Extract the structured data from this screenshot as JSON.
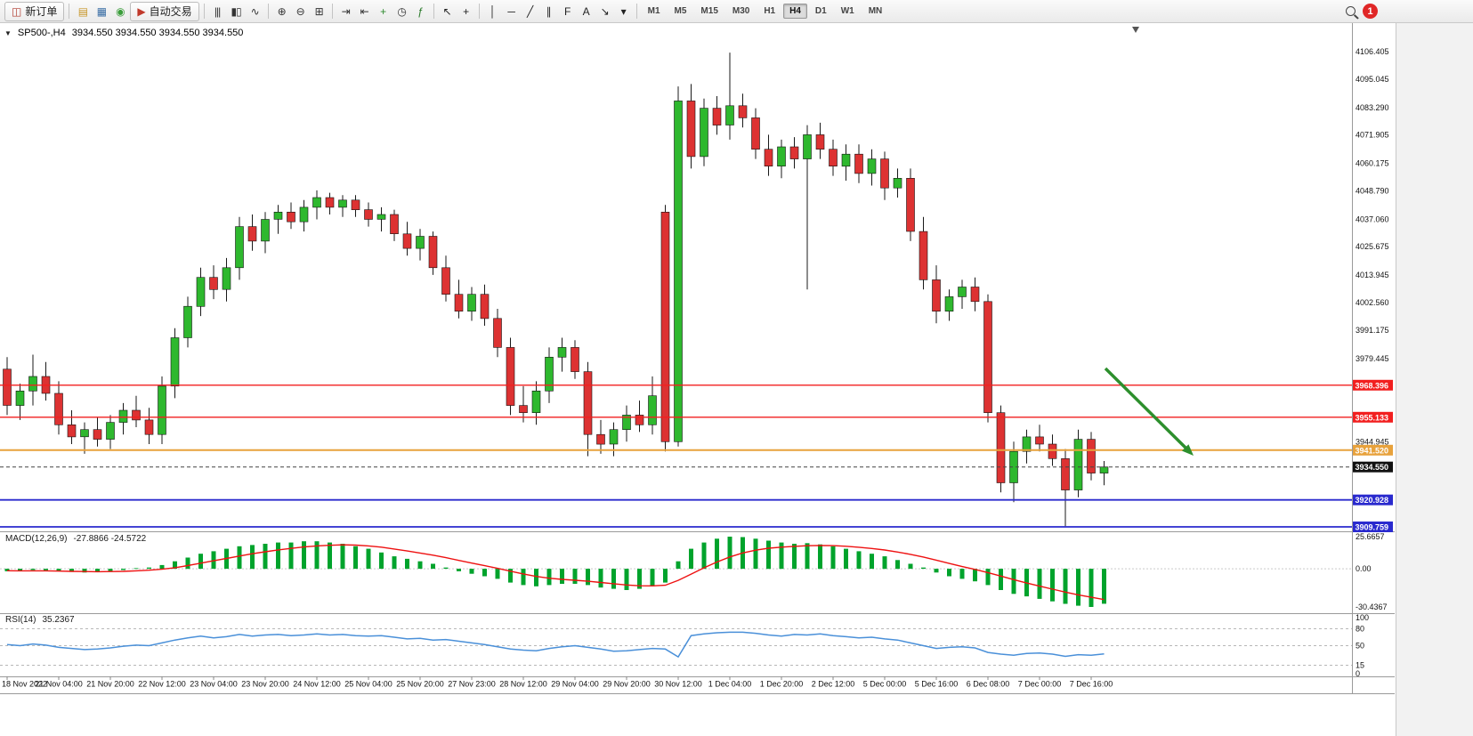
{
  "toolbar": {
    "notification_count": "1",
    "timeframes": [
      "M1",
      "M5",
      "M15",
      "M30",
      "H1",
      "H4",
      "D1",
      "W1",
      "MN"
    ],
    "active_timeframe": "H4",
    "items": [
      {
        "kind": "button",
        "name": "new-order-button",
        "glyph": "◫",
        "glyph_color": "#b03a2e",
        "label": "新订单"
      },
      {
        "kind": "sep"
      },
      {
        "kind": "icon",
        "name": "new-chart-icon",
        "glyph": "▤",
        "glyph_color": "#c8972b"
      },
      {
        "kind": "icon",
        "name": "profiles-icon",
        "glyph": "▦",
        "glyph_color": "#3a6ea5"
      },
      {
        "kind": "icon",
        "name": "market-watch-icon",
        "glyph": "◉",
        "glyph_color": "#3a9d3a"
      },
      {
        "kind": "button",
        "name": "autotrading-button",
        "glyph": "▶",
        "glyph_color": "#c0392b",
        "label": "自动交易"
      },
      {
        "kind": "sep"
      },
      {
        "kind": "icon",
        "name": "bar-chart-icon",
        "glyph": "|||",
        "glyph_color": "#333333"
      },
      {
        "kind": "icon",
        "name": "candlestick-chart-icon",
        "glyph": "▮▯",
        "glyph_color": "#333333"
      },
      {
        "kind": "icon",
        "name": "line-chart-icon",
        "glyph": "∿",
        "glyph_color": "#333333"
      },
      {
        "kind": "sep"
      },
      {
        "kind": "icon",
        "name": "zoom-in-icon",
        "glyph": "⊕",
        "glyph_color": "#333333"
      },
      {
        "kind": "icon",
        "name": "zoom-out-icon",
        "glyph": "⊖",
        "glyph_color": "#333333"
      },
      {
        "kind": "icon",
        "name": "tile-windows-icon",
        "glyph": "⊞",
        "glyph_color": "#333333"
      },
      {
        "kind": "sep"
      },
      {
        "kind": "icon",
        "name": "auto-scroll-icon",
        "glyph": "⇥",
        "glyph_color": "#333333"
      },
      {
        "kind": "icon",
        "name": "chart-shift-icon",
        "glyph": "⇤",
        "glyph_color": "#333333"
      },
      {
        "kind": "icon",
        "name": "new-window-icon",
        "glyph": "+",
        "glyph_color": "#2e8b2e"
      },
      {
        "kind": "icon",
        "name": "period-clock-icon",
        "glyph": "◷",
        "glyph_color": "#333333"
      },
      {
        "kind": "icon",
        "name": "indicators-icon",
        "glyph": "ƒ",
        "glyph_color": "#2a7a2a"
      },
      {
        "kind": "sep"
      },
      {
        "kind": "icon",
        "name": "cursor-icon",
        "glyph": "↖",
        "glyph_color": "#222222"
      },
      {
        "kind": "icon",
        "name": "crosshair-icon",
        "glyph": "+",
        "glyph_color": "#222222"
      },
      {
        "kind": "sep"
      },
      {
        "kind": "icon",
        "name": "vertical-line-icon",
        "glyph": "│",
        "glyph_color": "#222222"
      },
      {
        "kind": "icon",
        "name": "horizontal-line-icon",
        "glyph": "─",
        "glyph_color": "#222222"
      },
      {
        "kind": "icon",
        "name": "trendline-icon",
        "glyph": "╱",
        "glyph_color": "#222222"
      },
      {
        "kind": "icon",
        "name": "channel-icon",
        "glyph": "∥",
        "glyph_color": "#222222"
      },
      {
        "kind": "icon",
        "name": "fibonacci-icon",
        "glyph": "F",
        "glyph_color": "#222222"
      },
      {
        "kind": "icon",
        "name": "text-tool-icon",
        "glyph": "A",
        "glyph_color": "#222222"
      },
      {
        "kind": "icon",
        "name": "arrows-tool-icon",
        "glyph": "↘",
        "glyph_color": "#222222"
      },
      {
        "kind": "icon",
        "name": "shapes-dropdown-icon",
        "glyph": "▾",
        "glyph_color": "#222222"
      },
      {
        "kind": "sep"
      },
      {
        "kind": "timeframes"
      }
    ]
  },
  "quote": {
    "symbol_period": "SP500-,H4",
    "ohlc": "3934.550 3934.550 3934.550 3934.550"
  },
  "chart_data": {
    "type": "candlestick",
    "symbol": "SP500-",
    "period": "H4",
    "title": "SP500-,H4",
    "ylim": [
      3907.9,
      4117.5
    ],
    "grid": false,
    "colors": {
      "up": "#2eb82e",
      "down": "#dd3232",
      "macd_hist": "#00a32c",
      "macd_signal": "#ee1111",
      "rsi_line": "#4a90d9",
      "arrow": "#2d8f2d",
      "line_red": "#f21f1f",
      "line_orange": "#e8a23c",
      "line_blue": "#2a2ace"
    },
    "x_labels": [
      "18 Nov 2022",
      "21 Nov 04:00",
      "21 Nov 20:00",
      "22 Nov 12:00",
      "23 Nov 04:00",
      "23 Nov 20:00",
      "24 Nov 12:00",
      "25 Nov 04:00",
      "25 Nov 20:00",
      "27 Nov 23:00",
      "28 Nov 12:00",
      "29 Nov 04:00",
      "29 Nov 20:00",
      "30 Nov 12:00",
      "1 Dec 04:00",
      "1 Dec 20:00",
      "2 Dec 12:00",
      "5 Dec 00:00",
      "5 Dec 16:00",
      "6 Dec 08:00",
      "7 Dec 00:00",
      "7 Dec 16:00"
    ],
    "candles": [
      [
        3975,
        3980,
        3956,
        3960
      ],
      [
        3960,
        3969,
        3954,
        3966
      ],
      [
        3966,
        3981,
        3960,
        3972
      ],
      [
        3972,
        3978,
        3962,
        3965
      ],
      [
        3965,
        3970,
        3948,
        3952
      ],
      [
        3952,
        3958,
        3944,
        3947
      ],
      [
        3947,
        3953,
        3940,
        3950
      ],
      [
        3950,
        3955,
        3943,
        3946
      ],
      [
        3946,
        3956,
        3942,
        3953
      ],
      [
        3953,
        3961,
        3948,
        3958
      ],
      [
        3958,
        3964,
        3951,
        3954
      ],
      [
        3954,
        3959,
        3944,
        3948
      ],
      [
        3948,
        3972,
        3944,
        3968
      ],
      [
        3968,
        3992,
        3963,
        3988
      ],
      [
        3988,
        4005,
        3984,
        4001
      ],
      [
        4001,
        4017,
        3997,
        4013
      ],
      [
        4013,
        4018,
        4004,
        4008
      ],
      [
        4008,
        4021,
        4003,
        4017
      ],
      [
        4017,
        4038,
        4012,
        4034
      ],
      [
        4034,
        4039,
        4024,
        4028
      ],
      [
        4028,
        4040,
        4023,
        4037
      ],
      [
        4037,
        4043,
        4031,
        4040
      ],
      [
        4040,
        4044,
        4033,
        4036
      ],
      [
        4036,
        4045,
        4032,
        4042
      ],
      [
        4042,
        4049,
        4037,
        4046
      ],
      [
        4046,
        4048,
        4039,
        4042
      ],
      [
        4042,
        4047,
        4038,
        4045
      ],
      [
        4045,
        4047,
        4038,
        4041
      ],
      [
        4041,
        4044,
        4034,
        4037
      ],
      [
        4037,
        4042,
        4032,
        4039
      ],
      [
        4039,
        4041,
        4028,
        4031
      ],
      [
        4031,
        4036,
        4022,
        4025
      ],
      [
        4025,
        4033,
        4020,
        4030
      ],
      [
        4030,
        4032,
        4014,
        4017
      ],
      [
        4017,
        4022,
        4003,
        4006
      ],
      [
        4006,
        4012,
        3996,
        3999
      ],
      [
        3999,
        4009,
        3995,
        4006
      ],
      [
        4006,
        4010,
        3993,
        3996
      ],
      [
        3996,
        4000,
        3980,
        3984
      ],
      [
        3984,
        3988,
        3956,
        3960
      ],
      [
        3960,
        3968,
        3953,
        3957
      ],
      [
        3957,
        3970,
        3952,
        3966
      ],
      [
        3966,
        3984,
        3961,
        3980
      ],
      [
        3980,
        3988,
        3974,
        3984
      ],
      [
        3984,
        3987,
        3971,
        3974
      ],
      [
        3974,
        3978,
        3939,
        3948
      ],
      [
        3948,
        3954,
        3940,
        3944
      ],
      [
        3944,
        3953,
        3939,
        3950
      ],
      [
        3950,
        3960,
        3945,
        3956
      ],
      [
        3956,
        3962,
        3949,
        3952
      ],
      [
        3952,
        3972,
        3948,
        3964
      ],
      [
        4040,
        4043,
        3941,
        3945
      ],
      [
        3945,
        4092,
        3943,
        4086
      ],
      [
        4086,
        4093,
        4058,
        4063
      ],
      [
        4063,
        4087,
        4059,
        4083
      ],
      [
        4083,
        4088,
        4072,
        4076
      ],
      [
        4076,
        4106,
        4070,
        4084
      ],
      [
        4084,
        4089,
        4075,
        4079
      ],
      [
        4079,
        4083,
        4062,
        4066
      ],
      [
        4066,
        4072,
        4055,
        4059
      ],
      [
        4059,
        4070,
        4054,
        4067
      ],
      [
        4067,
        4071,
        4058,
        4062
      ],
      [
        4062,
        4076,
        4008,
        4072
      ],
      [
        4072,
        4077,
        4062,
        4066
      ],
      [
        4066,
        4070,
        4055,
        4059
      ],
      [
        4059,
        4068,
        4053,
        4064
      ],
      [
        4064,
        4068,
        4052,
        4056
      ],
      [
        4056,
        4066,
        4051,
        4062
      ],
      [
        4062,
        4065,
        4045,
        4050
      ],
      [
        4050,
        4058,
        4046,
        4054
      ],
      [
        4054,
        4058,
        4028,
        4032
      ],
      [
        4032,
        4038,
        4008,
        4012
      ],
      [
        4012,
        4018,
        3994,
        3999
      ],
      [
        3999,
        4008,
        3995,
        4005
      ],
      [
        4005,
        4012,
        4000,
        4009
      ],
      [
        4009,
        4013,
        3999,
        4003
      ],
      [
        4003,
        4006,
        3953,
        3957
      ],
      [
        3957,
        3960,
        3924,
        3928
      ],
      [
        3928,
        3945,
        3920,
        3941
      ],
      [
        3941,
        3950,
        3936,
        3947
      ],
      [
        3947,
        3952,
        3941,
        3944
      ],
      [
        3944,
        3948,
        3935,
        3938
      ],
      [
        3938,
        3942,
        3910,
        3925
      ],
      [
        3925,
        3950,
        3922,
        3946
      ],
      [
        3946,
        3949,
        3929,
        3932
      ],
      [
        3932,
        3937,
        3927,
        3934.55
      ]
    ],
    "current_price": 3934.55,
    "price_lines": [
      {
        "value": 3968.396,
        "color": "#f21f1f",
        "width": 1.3
      },
      {
        "value": 3955.133,
        "color": "#f21f1f",
        "width": 1.3
      },
      {
        "value": 3941.52,
        "color": "#e8a23c",
        "width": 2
      },
      {
        "value": 3920.928,
        "color": "#2a2ace",
        "width": 1.8
      },
      {
        "value": 3909.759,
        "color": "#2a2ace",
        "width": 1.8
      }
    ],
    "price_badges": [
      {
        "label": "3968.396",
        "value": 3968.396,
        "color": "#f21f1f"
      },
      {
        "label": "3955.133",
        "value": 3955.133,
        "color": "#f21f1f"
      },
      {
        "label": "3941.520",
        "value": 3941.52,
        "color": "#e8a23c"
      },
      {
        "label": "3934.550",
        "value": 3934.55,
        "color": "#111111"
      },
      {
        "label": "3920.928",
        "value": 3920.928,
        "color": "#2a2ace"
      },
      {
        "label": "3909.759",
        "value": 3909.759,
        "color": "#2a2ace"
      }
    ],
    "y_axis_ticks": [
      "4106.405",
      "4095.045",
      "4083.290",
      "4071.905",
      "4060.175",
      "4048.790",
      "4037.060",
      "4025.675",
      "4013.945",
      "4002.560",
      "3991.175",
      "3979.445",
      "3944.945"
    ],
    "macd": {
      "header": "MACD(12,26,9)",
      "current": "-27.8866 -24.5722",
      "scale_labels": [
        "25.6657",
        "0.00",
        "-30.4367"
      ],
      "range": [
        -30.4367,
        25.6657
      ],
      "histogram": [
        -2,
        -1.5,
        -1,
        -1.2,
        -2,
        -2.5,
        -3,
        -2.5,
        -2,
        -1,
        0.5,
        1,
        3,
        6,
        9,
        12,
        14,
        16,
        18,
        19,
        20,
        21,
        21,
        22,
        22,
        21,
        20,
        18,
        16,
        13,
        10,
        8,
        6,
        4,
        1,
        -2,
        -4,
        -6,
        -8,
        -11,
        -13,
        -14,
        -13,
        -12,
        -12,
        -13,
        -15,
        -16,
        -17,
        -16,
        -14,
        -11,
        6,
        16,
        21,
        24,
        25.7,
        25.3,
        24,
        22.5,
        21,
        20,
        20.5,
        19.5,
        18,
        16,
        14,
        12,
        10,
        7,
        4,
        1,
        -3,
        -6,
        -8,
        -10,
        -13,
        -17,
        -20,
        -22,
        -24,
        -26,
        -28,
        -29.5,
        -30.44,
        -27.89
      ],
      "signal": [
        -1.5,
        -1.6,
        -1.6,
        -1.6,
        -1.8,
        -2,
        -2.2,
        -2.3,
        -2.2,
        -2,
        -1.6,
        -1.1,
        -0.3,
        0.9,
        2.6,
        4.5,
        6.4,
        8.3,
        10.2,
        12,
        13.6,
        15.1,
        16.3,
        17.4,
        18.3,
        18.8,
        19.1,
        18.9,
        18.3,
        17.3,
        15.8,
        14.2,
        12.6,
        10.9,
        8.9,
        6.7,
        4.6,
        2.5,
        0.4,
        -1.9,
        -4.1,
        -6.1,
        -7.5,
        -8.4,
        -9.1,
        -9.9,
        -10.9,
        -11.9,
        -12.9,
        -13.5,
        -13.6,
        -13.1,
        -9.2,
        -4.2,
        0.8,
        5.4,
        9.5,
        12.7,
        14.9,
        16.4,
        17.3,
        17.9,
        18.4,
        18.6,
        18.5,
        18,
        17.2,
        16.2,
        15,
        13.4,
        11.5,
        9.4,
        6.9,
        4.3,
        1.8,
        -0.5,
        -3,
        -5.8,
        -8.6,
        -11.3,
        -13.8,
        -16.2,
        -18.6,
        -20.8,
        -22.7,
        -24.57
      ]
    },
    "rsi": {
      "header": "RSI(14)",
      "current": "35.2367",
      "scale_labels": [
        "100",
        "80",
        "50",
        "15",
        "0"
      ],
      "levels": [
        80,
        50,
        15
      ],
      "range": [
        0,
        100
      ],
      "values": [
        52,
        50,
        53,
        51,
        47,
        45,
        43,
        44,
        46,
        49,
        51,
        50,
        55,
        60,
        64,
        67,
        64,
        66,
        70,
        67,
        69,
        70,
        68,
        69,
        71,
        69,
        70,
        68,
        67,
        68,
        65,
        62,
        63,
        60,
        61,
        58,
        55,
        52,
        48,
        44,
        42,
        41,
        45,
        48,
        50,
        47,
        44,
        40,
        41,
        43,
        45,
        44,
        30,
        68,
        71,
        73,
        74,
        74,
        72,
        69,
        67,
        70,
        69,
        71,
        68,
        66,
        64,
        65,
        62,
        60,
        55,
        50,
        45,
        47,
        48,
        46,
        38,
        35,
        33,
        36,
        37,
        35,
        31,
        34,
        33,
        35.24
      ]
    }
  }
}
